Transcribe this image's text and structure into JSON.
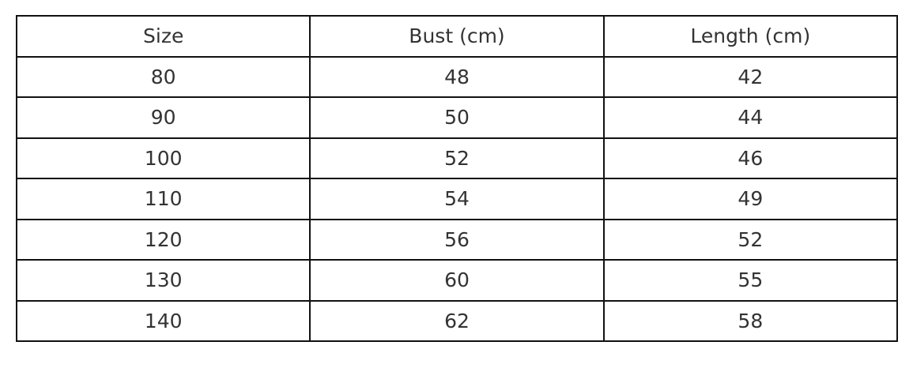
{
  "table": {
    "headers": [
      "Size",
      "Bust (cm)",
      "Length (cm)"
    ],
    "rows": [
      [
        "80",
        "48",
        "42"
      ],
      [
        "90",
        "50",
        "44"
      ],
      [
        "100",
        "52",
        "46"
      ],
      [
        "110",
        "54",
        "49"
      ],
      [
        "120",
        "56",
        "52"
      ],
      [
        "130",
        "60",
        "55"
      ],
      [
        "140",
        "62",
        "58"
      ]
    ]
  }
}
